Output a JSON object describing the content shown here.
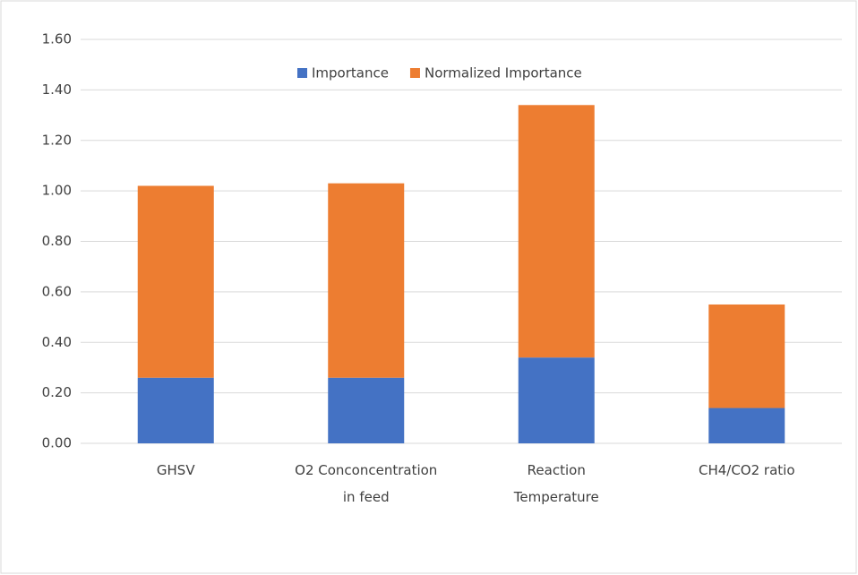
{
  "chart_data": {
    "type": "stacked_bar",
    "categories": [
      "GHSV",
      "O2 Conconcentration\nin feed",
      "Reaction\nTemperature",
      "CH4/CO2 ratio"
    ],
    "series": [
      {
        "name": "Importance",
        "color": "#4472c4",
        "values": [
          0.26,
          0.26,
          0.34,
          0.14
        ]
      },
      {
        "name": "Normalized Importance",
        "color": "#ed7d31",
        "values": [
          0.76,
          0.77,
          1.0,
          0.41
        ]
      }
    ],
    "ylim": [
      0,
      1.6
    ],
    "yticks": [
      {
        "value": 0,
        "label": "0.00"
      },
      {
        "value": 0.2,
        "label": "0.20"
      },
      {
        "value": 0.4,
        "label": "0.40"
      },
      {
        "value": 0.6,
        "label": "0.60"
      },
      {
        "value": 0.8,
        "label": "0.80"
      },
      {
        "value": 1.0,
        "label": "1.00"
      },
      {
        "value": 1.2,
        "label": "1.20"
      },
      {
        "value": 1.4,
        "label": "1.40"
      },
      {
        "value": 1.6,
        "label": "1.60"
      }
    ],
    "grid": true,
    "legend": "top"
  }
}
